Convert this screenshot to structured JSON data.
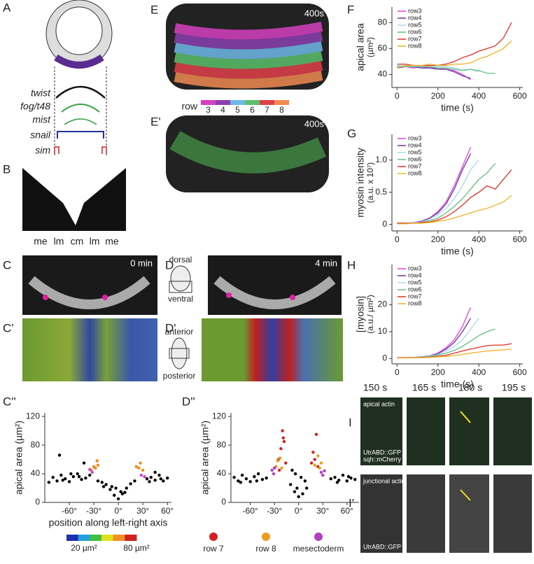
{
  "figure": {
    "panel_labels": [
      "A",
      "B",
      "C",
      "D",
      "C'",
      "D'",
      "C''",
      "D''",
      "E",
      "E'",
      "F",
      "G",
      "H",
      "I",
      "I'"
    ],
    "genes": [
      "twist",
      "fog/t48",
      "mist",
      "snail",
      "sim"
    ],
    "b_regions": [
      "me",
      "lm",
      "cm",
      "lm",
      "me"
    ],
    "stamps": [
      "0 min",
      "4 min",
      "400s",
      "400s"
    ],
    "orientation": [
      "dorsal",
      "ventral",
      "anterior",
      "posterior"
    ],
    "row_legend": {
      "title": "row",
      "items": [
        {
          "label": "3",
          "color": "#d63fc0"
        },
        {
          "label": "4",
          "color": "#8a3fb0"
        },
        {
          "label": "5",
          "color": "#6fb8e8"
        },
        {
          "label": "6",
          "color": "#5cc06a"
        },
        {
          "label": "7",
          "color": "#e0404a"
        },
        {
          "label": "8",
          "color": "#f08a50"
        }
      ]
    },
    "i_times": [
      "150 s",
      "165 s",
      "180 s",
      "195 s"
    ],
    "i_labels": [
      "apical actin",
      "UtrABD::GFP",
      "sqh::mCherry",
      "junctional actin",
      "UtrABD::GFP"
    ],
    "colorbar_ticks": [
      {
        "value": 20,
        "label": "20 µm²"
      },
      {
        "value": 80,
        "label": "80 µm²"
      }
    ],
    "colorbar_colors": [
      "#2030b0",
      "#20a0e0",
      "#40c040",
      "#e0e020",
      "#f09020",
      "#d02020"
    ]
  },
  "chart_data": [
    {
      "type": "scatter",
      "ylabel": "apical area (µm²)",
      "xlabel": "position along left-right axis",
      "xlim": [
        -90,
        65
      ],
      "ylim": [
        0,
        125
      ],
      "yticks": [
        0,
        40,
        80,
        120
      ],
      "xticks": [
        {
          "value": -60,
          "label": "-60°"
        },
        {
          "value": -30,
          "label": "-30°"
        },
        {
          "value": 0,
          "label": "0°"
        },
        {
          "value": 30,
          "label": "30°"
        },
        {
          "value": 60,
          "label": "60°"
        }
      ],
      "series": [
        {
          "color": "#000000",
          "x": [
            -80,
            -75,
            -70,
            -65,
            -60,
            -55,
            -50,
            -45,
            -40,
            -35,
            -25,
            -20,
            -15,
            -10,
            -5,
            0,
            5,
            10,
            15,
            20,
            35,
            40,
            45,
            50,
            55,
            60,
            -72,
            -58,
            -42,
            45,
            -3,
            3,
            -8,
            8,
            -85,
            -68,
            -48,
            38,
            52,
            -18
          ],
          "values": [
            35,
            30,
            38,
            33,
            29,
            36,
            40,
            32,
            34,
            38,
            30,
            28,
            25,
            18,
            10,
            5,
            12,
            20,
            26,
            30,
            33,
            35,
            31,
            38,
            30,
            34,
            66,
            40,
            55,
            42,
            20,
            15,
            22,
            14,
            28,
            31,
            36,
            29,
            33,
            22
          ]
        },
        {
          "color": "#f08a20",
          "x": [
            -33,
            -30,
            -28,
            -26,
            -25,
            22,
            25,
            27,
            30
          ],
          "values": [
            45,
            50,
            48,
            58,
            52,
            50,
            48,
            55,
            45
          ]
        },
        {
          "color": "#d040d0",
          "x": [
            -35,
            -32,
            28,
            32
          ],
          "values": [
            46,
            42,
            38,
            36
          ]
        }
      ]
    },
    {
      "type": "scatter",
      "ylabel": "apical area (µm²)",
      "xlim": [
        -84,
        75
      ],
      "ylim": [
        0,
        125
      ],
      "yticks": [
        0,
        40,
        80,
        120
      ],
      "xticks": [
        {
          "value": -60,
          "label": "-60°"
        },
        {
          "value": -30,
          "label": "-30°"
        },
        {
          "value": 0,
          "label": "0°"
        },
        {
          "value": 30,
          "label": "30°"
        },
        {
          "value": 60,
          "label": "60°"
        }
      ],
      "series": [
        {
          "color": "#000000",
          "x": [
            -80,
            -75,
            -70,
            -65,
            -60,
            -55,
            -50,
            -45,
            -40,
            -10,
            -5,
            0,
            5,
            10,
            40,
            45,
            50,
            55,
            60,
            65,
            70,
            -72,
            -52,
            -2,
            3,
            8,
            48,
            62,
            -8,
            -4
          ],
          "values": [
            35,
            30,
            38,
            33,
            29,
            36,
            40,
            32,
            34,
            25,
            15,
            8,
            12,
            20,
            33,
            35,
            31,
            38,
            30,
            34,
            32,
            28,
            30,
            20,
            35,
            30,
            28,
            36,
            45,
            40
          ]
        },
        {
          "name": "row 7",
          "color": "#d42020",
          "x": [
            -25,
            -22,
            -20,
            -18,
            -16,
            -24,
            18,
            20,
            22,
            24,
            16,
            -19
          ],
          "values": [
            60,
            75,
            100,
            85,
            55,
            45,
            70,
            60,
            95,
            50,
            55,
            90
          ]
        },
        {
          "name": "row 8",
          "color": "#f09a20",
          "x": [
            -28,
            -26,
            -23,
            -21,
            20,
            24,
            26,
            28
          ],
          "values": [
            50,
            58,
            62,
            48,
            52,
            65,
            48,
            55
          ]
        },
        {
          "name": "mesectoderm",
          "color": "#b040c0",
          "x": [
            -33,
            -31,
            -30,
            28,
            30,
            32
          ],
          "values": [
            45,
            40,
            48,
            42,
            38,
            44
          ]
        }
      ]
    },
    {
      "type": "line",
      "ylabel": "apical area",
      "ylabel_unit": "(µm²)",
      "xlabel": "time (s)",
      "x": [
        0,
        40,
        80,
        120,
        160,
        200,
        240,
        280,
        320,
        360,
        400,
        440,
        480,
        520,
        560
      ],
      "xlim": [
        -25,
        615
      ],
      "ylim": [
        30,
        92
      ],
      "xticks": [
        0,
        200,
        400,
        600
      ],
      "yticks": [
        40,
        60,
        80
      ],
      "series": [
        {
          "name": "row3",
          "color": "#e040e0",
          "values": [
            46,
            46,
            45,
            46,
            45,
            45,
            44,
            43,
            40,
            36,
            null,
            null,
            null,
            null,
            null
          ]
        },
        {
          "name": "row4",
          "color": "#7030a0",
          "values": [
            45,
            46,
            46,
            45,
            45,
            44,
            44,
            42,
            39,
            37,
            null,
            null,
            null,
            null,
            null
          ]
        },
        {
          "name": "row5",
          "color": "#a8d8f0",
          "values": [
            47,
            47,
            47,
            46,
            46,
            46,
            46,
            45,
            44,
            44,
            42,
            null,
            null,
            null,
            null
          ]
        },
        {
          "name": "row6",
          "color": "#60c080",
          "values": [
            46,
            46,
            46,
            46,
            46,
            45,
            45,
            44,
            43,
            44,
            43,
            41,
            41,
            null,
            null
          ]
        },
        {
          "name": "row7",
          "color": "#e03020",
          "values": [
            48,
            48,
            47,
            47,
            47,
            47,
            48,
            50,
            53,
            55,
            58,
            60,
            62,
            68,
            80
          ]
        },
        {
          "name": "row8",
          "color": "#f0b020",
          "values": [
            45,
            47,
            47,
            47,
            48,
            47,
            47,
            48,
            48,
            49,
            52,
            54,
            57,
            60,
            66
          ]
        }
      ]
    },
    {
      "type": "line",
      "ylabel": "myosin intensity",
      "ylabel_unit": "(a.u. x 10⁷)",
      "xlabel": "time (s)",
      "x": [
        0,
        40,
        80,
        120,
        160,
        200,
        240,
        280,
        320,
        360,
        400,
        440,
        480,
        520,
        560
      ],
      "xlim": [
        -25,
        615
      ],
      "ylim": [
        -0.1,
        1.4
      ],
      "xticks": [
        0,
        200,
        400,
        600
      ],
      "yticks": [
        0,
        0.5,
        {
          "value": 1,
          "label": "1.0"
        }
      ],
      "series": [
        {
          "name": "row3",
          "color": "#e040e0",
          "values": [
            0.02,
            0.02,
            0.03,
            0.05,
            0.1,
            0.2,
            0.35,
            0.6,
            0.9,
            1.2,
            null,
            null,
            null,
            null,
            null
          ]
        },
        {
          "name": "row4",
          "color": "#7030a0",
          "values": [
            0.02,
            0.02,
            0.03,
            0.05,
            0.1,
            0.18,
            0.32,
            0.55,
            0.85,
            1.1,
            null,
            null,
            null,
            null,
            null
          ]
        },
        {
          "name": "row5",
          "color": "#a8d8f0",
          "values": [
            0.02,
            0.02,
            0.03,
            0.04,
            0.08,
            0.15,
            0.25,
            0.4,
            0.6,
            0.85,
            1.0,
            null,
            null,
            null,
            null
          ]
        },
        {
          "name": "row6",
          "color": "#60c080",
          "values": [
            0.02,
            0.02,
            0.02,
            0.03,
            0.06,
            0.1,
            0.18,
            0.28,
            0.4,
            0.55,
            0.7,
            0.8,
            0.95,
            null,
            null
          ]
        },
        {
          "name": "row7",
          "color": "#e03020",
          "values": [
            0.02,
            0.02,
            0.02,
            0.03,
            0.04,
            0.07,
            0.12,
            0.2,
            0.3,
            0.42,
            0.5,
            0.6,
            0.55,
            0.7,
            0.85
          ]
        },
        {
          "name": "row8",
          "color": "#f0b020",
          "values": [
            0.01,
            0.01,
            0.02,
            0.02,
            0.03,
            0.05,
            0.07,
            0.1,
            0.14,
            0.18,
            0.22,
            0.25,
            0.3,
            0.35,
            0.45
          ]
        }
      ]
    },
    {
      "type": "line",
      "ylabel": "[myosin]",
      "ylabel_unit": "(a.u./ µm²)",
      "xlabel": "time (s)",
      "x": [
        0,
        40,
        80,
        120,
        160,
        200,
        240,
        280,
        320,
        360,
        400,
        440,
        480,
        520,
        560
      ],
      "xlim": [
        -25,
        615
      ],
      "ylim": [
        -2,
        35
      ],
      "xticks": [
        0,
        200,
        400,
        600
      ],
      "yticks": [
        0,
        10,
        20
      ],
      "series": [
        {
          "name": "row3",
          "color": "#e040e0",
          "values": [
            0.3,
            0.3,
            0.4,
            0.6,
            1,
            2,
            4,
            7,
            12,
            19,
            null,
            null,
            null,
            null,
            null
          ]
        },
        {
          "name": "row4",
          "color": "#7030a0",
          "values": [
            0.3,
            0.3,
            0.4,
            0.6,
            1,
            1.8,
            3.5,
            6,
            10,
            15,
            null,
            null,
            null,
            null,
            null
          ]
        },
        {
          "name": "row5",
          "color": "#a8d8f0",
          "values": [
            0.3,
            0.3,
            0.4,
            0.5,
            0.9,
            1.5,
            2.8,
            4.5,
            7,
            11,
            15,
            null,
            null,
            null,
            null
          ]
        },
        {
          "name": "row6",
          "color": "#60c080",
          "values": [
            0.3,
            0.3,
            0.3,
            0.4,
            0.7,
            1.2,
            2,
            3,
            4.5,
            6.5,
            8.5,
            10,
            11,
            null,
            null
          ]
        },
        {
          "name": "row7",
          "color": "#e03020",
          "values": [
            0.3,
            0.3,
            0.3,
            0.4,
            0.5,
            0.8,
            1.2,
            2,
            2.8,
            3.5,
            4.2,
            4.8,
            5,
            5,
            5.5
          ]
        },
        {
          "name": "row8",
          "color": "#f0b020",
          "values": [
            0.2,
            0.2,
            0.3,
            0.3,
            0.4,
            0.6,
            0.8,
            1.1,
            1.5,
            2,
            2.4,
            2.8,
            3,
            3.2,
            3.5
          ]
        }
      ]
    }
  ]
}
